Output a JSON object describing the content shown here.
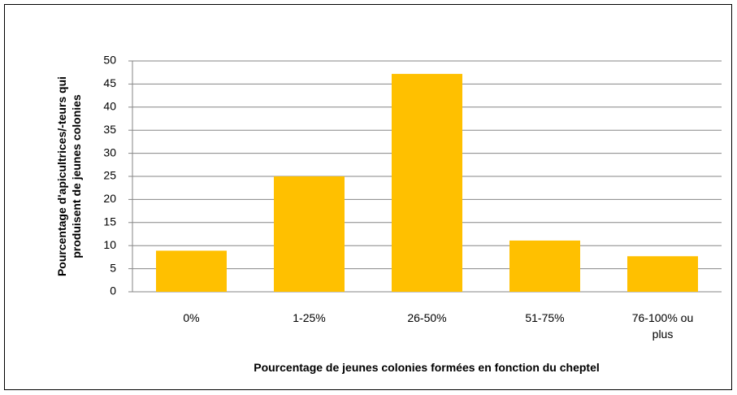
{
  "chart_data": {
    "type": "bar",
    "categories": [
      "0%",
      "1-25%",
      "26-50%",
      "51-75%",
      "76-100% ou plus"
    ],
    "values": [
      8.9,
      25,
      47.2,
      11.1,
      7.7
    ],
    "color": "#ffc000",
    "xlabel": "Pourcentage de jeunes colonies formées en fonction du cheptel",
    "ylabel": "Pourcentage d'apicultrices/-teurs qui produisent de jeunes colonies",
    "ylim": [
      0,
      50
    ],
    "yticks": [
      0,
      5,
      10,
      15,
      20,
      25,
      30,
      35,
      40,
      45,
      50
    ],
    "grid": true
  }
}
